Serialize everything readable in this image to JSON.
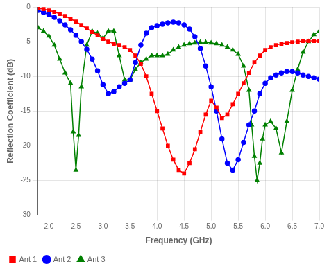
{
  "chart_data": {
    "type": "line",
    "xlabel": "Frequency (GHz)",
    "ylabel": "Reflection Coefficient (dB)",
    "xlim": [
      1.8,
      7.0
    ],
    "ylim": [
      -30,
      0
    ],
    "xticks": [
      {
        "value": 2,
        "label": "2.0"
      },
      2.5,
      {
        "value": 3,
        "label": "3.0"
      },
      3.5,
      {
        "value": 4,
        "label": "4.0"
      },
      4.5,
      {
        "value": 5,
        "label": "5.0"
      },
      5.5,
      {
        "value": 6,
        "label": "6.0"
      },
      6.5,
      {
        "value": 7,
        "label": "7.0"
      }
    ],
    "yticks": [
      0,
      -5,
      -10,
      -15,
      -20,
      -25,
      -30
    ],
    "grid": true,
    "legend": "lower left",
    "series": [
      {
        "name": "Ant 1",
        "color": "#ff0000",
        "marker": "square",
        "x": [
          1.8,
          1.9,
          2.0,
          2.1,
          2.2,
          2.3,
          2.4,
          2.5,
          2.6,
          2.7,
          2.8,
          2.9,
          3.0,
          3.1,
          3.2,
          3.3,
          3.4,
          3.5,
          3.6,
          3.7,
          3.8,
          3.9,
          4.0,
          4.1,
          4.2,
          4.3,
          4.4,
          4.5,
          4.6,
          4.7,
          4.8,
          4.9,
          5.0,
          5.1,
          5.2,
          5.3,
          5.4,
          5.5,
          5.6,
          5.7,
          5.8,
          5.9,
          6.0,
          6.1,
          6.2,
          6.3,
          6.4,
          6.5,
          6.6,
          6.7,
          6.8,
          6.9,
          7.0
        ],
        "values": [
          -0.2,
          -0.3,
          -0.5,
          -0.7,
          -1.0,
          -1.3,
          -1.7,
          -2.1,
          -2.6,
          -3.1,
          -3.6,
          -4.1,
          -4.6,
          -5.0,
          -5.3,
          -5.5,
          -5.8,
          -6.2,
          -7.0,
          -8.2,
          -10.0,
          -12.5,
          -15.0,
          -17.5,
          -20.0,
          -22.0,
          -23.5,
          -24.0,
          -22.5,
          -20.5,
          -18.0,
          -15.5,
          -13.5,
          -14.5,
          -16.0,
          -15.5,
          -14.0,
          -12.5,
          -11.0,
          -9.5,
          -8.0,
          -7.0,
          -6.2,
          -5.8,
          -5.5,
          -5.3,
          -5.2,
          -5.1,
          -5.0,
          -4.9,
          -4.9,
          -4.9,
          -4.9
        ]
      },
      {
        "name": "Ant 2",
        "color": "#0000ff",
        "marker": "circle",
        "x": [
          1.8,
          1.9,
          2.0,
          2.1,
          2.2,
          2.3,
          2.4,
          2.5,
          2.6,
          2.7,
          2.8,
          2.9,
          3.0,
          3.1,
          3.2,
          3.3,
          3.4,
          3.5,
          3.6,
          3.7,
          3.8,
          3.9,
          4.0,
          4.1,
          4.2,
          4.3,
          4.4,
          4.5,
          4.6,
          4.7,
          4.8,
          4.9,
          5.0,
          5.1,
          5.2,
          5.3,
          5.4,
          5.5,
          5.6,
          5.7,
          5.8,
          5.9,
          6.0,
          6.1,
          6.2,
          6.3,
          6.4,
          6.5,
          6.6,
          6.7,
          6.8,
          6.9,
          7.0
        ],
        "values": [
          -0.5,
          -0.8,
          -1.1,
          -1.5,
          -2.0,
          -2.6,
          -3.3,
          -4.1,
          -5.0,
          -6.1,
          -7.5,
          -9.2,
          -11.2,
          -12.5,
          -12.2,
          -11.5,
          -11.0,
          -10.5,
          -8.0,
          -5.5,
          -3.8,
          -3.0,
          -2.7,
          -2.5,
          -2.3,
          -2.2,
          -2.3,
          -2.6,
          -3.2,
          -4.3,
          -6.0,
          -8.5,
          -11.5,
          -15.0,
          -19.0,
          -22.5,
          -23.5,
          -22.0,
          -19.5,
          -17.0,
          -15.0,
          -12.5,
          -11.0,
          -10.2,
          -9.8,
          -9.5,
          -9.3,
          -9.3,
          -9.5,
          -9.8,
          -10.0,
          -10.2,
          -10.4
        ]
      },
      {
        "name": "Ant 3",
        "color": "#008000",
        "marker": "triangle",
        "x": [
          1.8,
          1.9,
          2.0,
          2.1,
          2.2,
          2.3,
          2.4,
          2.45,
          2.5,
          2.55,
          2.6,
          2.7,
          2.8,
          2.9,
          3.0,
          3.1,
          3.2,
          3.3,
          3.4,
          3.5,
          3.6,
          3.7,
          3.8,
          3.9,
          4.0,
          4.1,
          4.2,
          4.3,
          4.4,
          4.5,
          4.6,
          4.7,
          4.8,
          4.9,
          5.0,
          5.1,
          5.2,
          5.3,
          5.4,
          5.5,
          5.6,
          5.7,
          5.75,
          5.8,
          5.85,
          5.9,
          5.95,
          6.0,
          6.1,
          6.2,
          6.3,
          6.4,
          6.5,
          6.6,
          6.7,
          6.8,
          6.9,
          7.0
        ],
        "values": [
          -3.0,
          -3.5,
          -4.2,
          -5.5,
          -7.5,
          -9.5,
          -11.0,
          -18.0,
          -23.5,
          -18.5,
          -11.5,
          -5.5,
          -3.5,
          -3.8,
          -4.5,
          -3.5,
          -3.5,
          -7.0,
          -10.5,
          -10.5,
          -9.0,
          -8.0,
          -7.5,
          -7.0,
          -7.0,
          -7.0,
          -6.8,
          -6.2,
          -5.8,
          -5.5,
          -5.3,
          -5.2,
          -5.1,
          -5.1,
          -5.2,
          -5.3,
          -5.5,
          -5.8,
          -6.2,
          -6.8,
          -8.5,
          -12.0,
          -17.0,
          -21.5,
          -25.0,
          -22.5,
          -19.0,
          -17.0,
          -16.5,
          -17.5,
          -21.0,
          -16.5,
          -12.0,
          -9.0,
          -6.5,
          -5.0,
          -4.0,
          -3.5
        ]
      }
    ]
  }
}
